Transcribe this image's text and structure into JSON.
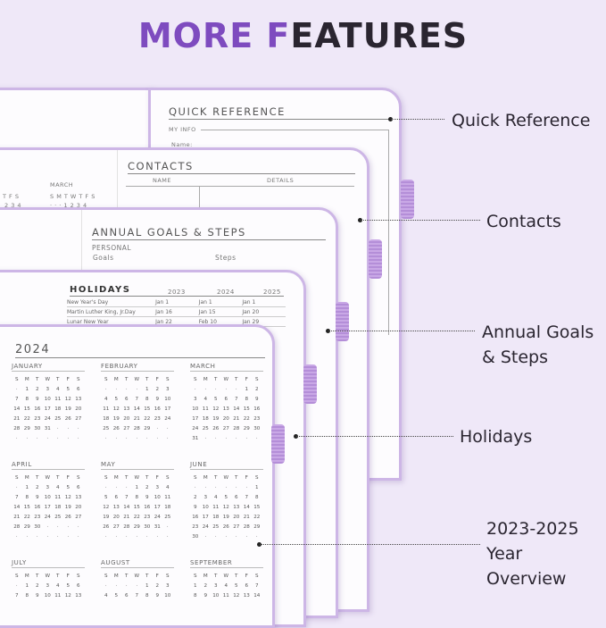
{
  "title": {
    "accent": "MORE F",
    "rest": "EATURES"
  },
  "colors": {
    "background": "#efe8f8",
    "accent": "#7e4bbf",
    "page_edge": "#cdb6e6",
    "elastic_tab": "#b48ed8"
  },
  "callouts": [
    {
      "lines": [
        "Quick Reference"
      ]
    },
    {
      "lines": [
        "Contacts"
      ]
    },
    {
      "lines": [
        "Annual Goals",
        "& Steps"
      ]
    },
    {
      "lines": [
        "Holidays"
      ]
    },
    {
      "lines": [
        "2023-2025",
        "Year",
        "Overview"
      ]
    }
  ],
  "quick_reference": {
    "title": "QUICK REFERENCE",
    "section": "MY INFO",
    "field": "Name:"
  },
  "contacts": {
    "title": "CONTACTS",
    "columns": [
      "NAME",
      "DETAILS"
    ],
    "behind_calendar": {
      "month": "MARCH",
      "weekdays": "S M T W T F S",
      "row": "· · · 1 2 3 4",
      "prev_cols": "T F S",
      "prev_row": "2 3 4"
    }
  },
  "goals": {
    "title": "ANNUAL GOALS & STEPS",
    "section": "PERSONAL",
    "goals_label": "Goals",
    "steps_label": "Steps"
  },
  "holidays": {
    "title": "HOLIDAYS",
    "years": [
      "2023",
      "2024",
      "2025"
    ],
    "rows": [
      [
        "New Year's Day",
        "Jan 1",
        "Jan 1",
        "Jan 1"
      ],
      [
        "Martin Luther King, Jr.Day",
        "Jan 16",
        "Jan 15",
        "Jan 20"
      ],
      [
        "Lunar New Year",
        "Jan 22",
        "Feb 10",
        "Jan 29"
      ]
    ]
  },
  "overview": {
    "year": "2024",
    "weekdays": [
      "S",
      "M",
      "T",
      "W",
      "T",
      "F",
      "S"
    ],
    "months": [
      {
        "name": "JANUARY",
        "weeks": [
          "· 1 2 3 4 5 6",
          "7 8 9 10 11 12 13",
          "14 15 16 17 18 19 20",
          "21 22 23 24 25 26 27",
          "28 29 30 31 · · ·",
          "· · · · · · ·"
        ]
      },
      {
        "name": "FEBRUARY",
        "weeks": [
          "· · · · 1 2 3",
          "4 5 6 7 8 9 10",
          "11 12 13 14 15 16 17",
          "18 19 20 21 22 23 24",
          "25 26 27 28 29 · ·",
          "· · · · · · ·"
        ]
      },
      {
        "name": "MARCH",
        "weeks": [
          "· · · · · 1 2",
          "3 4 5 6 7 8 9",
          "10 11 12 13 14 15 16",
          "17 18 19 20 21 22 23",
          "24 25 26 27 28 29 30",
          "31 · · · · · ·"
        ]
      },
      {
        "name": "APRIL",
        "weeks": [
          "· 1 2 3 4 5 6",
          "7 8 9 10 11 12 13",
          "14 15 16 17 18 19 20",
          "21 22 23 24 25 26 27",
          "28 29 30 · · · ·",
          "· · · · · · ·"
        ]
      },
      {
        "name": "MAY",
        "weeks": [
          "· · · 1 2 3 4",
          "5 6 7 8 9 10 11",
          "12 13 14 15 16 17 18",
          "19 20 21 22 23 24 25",
          "26 27 28 29 30 31 ·",
          "· · · · · · ·"
        ]
      },
      {
        "name": "JUNE",
        "weeks": [
          "· · · · · · 1",
          "2 3 4 5 6 7 8",
          "9 10 11 12 13 14 15",
          "16 17 18 19 20 21 22",
          "23 24 25 26 27 28 29",
          "30 · · · · · ·"
        ]
      },
      {
        "name": "JULY",
        "weeks": [
          "· 1 2 3 4 5 6",
          "7 8 9 10 11 12 13"
        ]
      },
      {
        "name": "AUGUST",
        "weeks": [
          "· · · · 1 2 3",
          "4 5 6 7 8 9 10"
        ]
      },
      {
        "name": "SEPTEMBER",
        "weeks": [
          "1 2 3 4 5 6 7",
          "8 9 10 11 12 13 14"
        ]
      }
    ]
  }
}
